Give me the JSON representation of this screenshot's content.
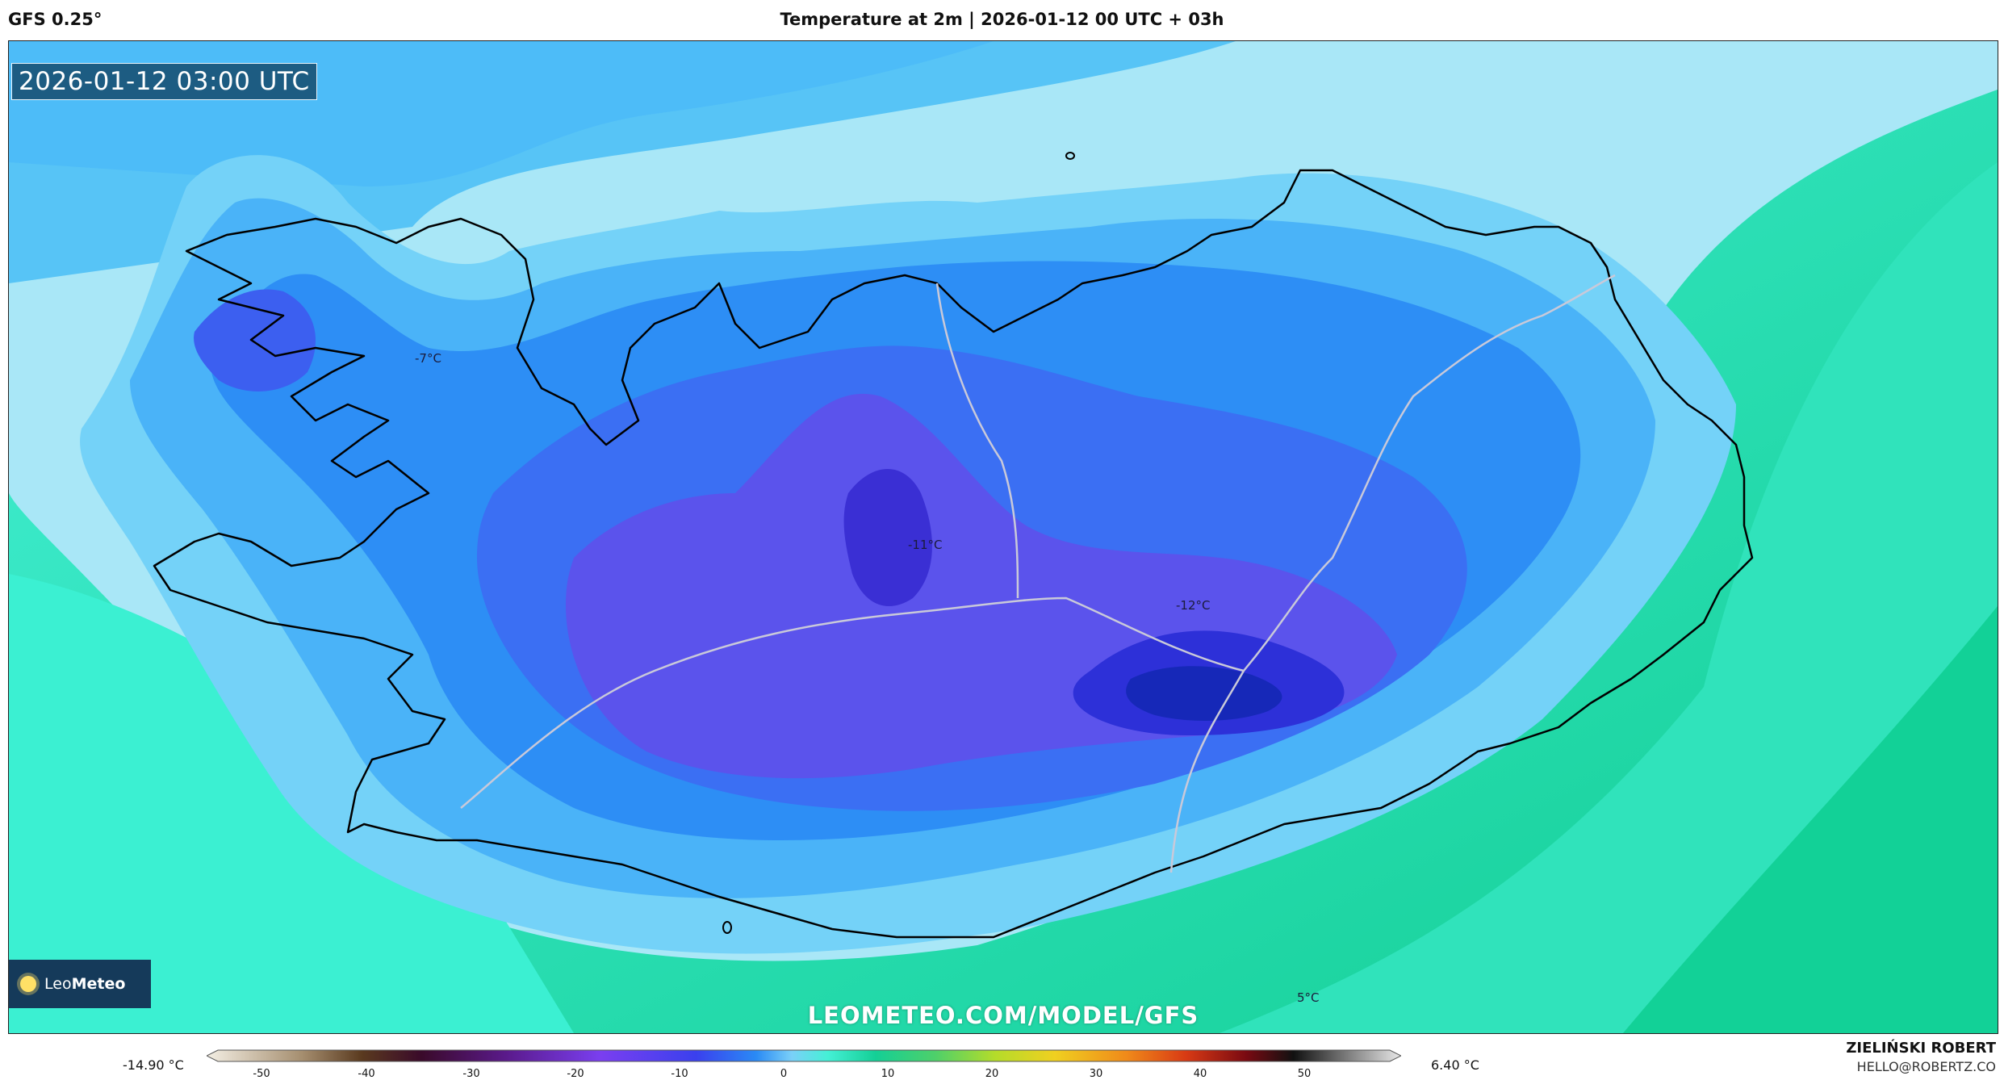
{
  "header": {
    "model_label": "GFS 0.25°",
    "title": "Temperature at 2m | 2026-01-12 00 UTC + 03h"
  },
  "map": {
    "valid_time": "2026-01-12 03:00 UTC",
    "watermark": "LEOMETEO.COM/MODEL/GFS",
    "logo": {
      "text_light": "Leo",
      "text_bold": "Meteo",
      "icon": "sun-icon"
    },
    "labels": [
      {
        "id": "west",
        "text": "-7°C"
      },
      {
        "id": "center",
        "text": "-11°C"
      },
      {
        "id": "east",
        "text": "-12°C"
      },
      {
        "id": "south",
        "text": "5°C"
      }
    ],
    "colors": {
      "sea_far": "#1fd3a0",
      "sea_near": "#45f0d6",
      "coastal": "#a9e7f7",
      "land_light": "#57c4f6",
      "land_mid": "#2a8df5",
      "land_cold": "#3e5af0",
      "land_colder": "#5a4fe8",
      "land_coldest": "#1a2fc4"
    }
  },
  "colorbar": {
    "min_label": "-14.90 °C",
    "max_label": "6.40 °C",
    "ticks": [
      "-50",
      "-40",
      "-30",
      "-20",
      "-10",
      "0",
      "10",
      "20",
      "30",
      "40",
      "50"
    ]
  },
  "credits": {
    "name": "ZIELIŃSKI ROBERT",
    "email": "HELLO@ROBERTZ.CO"
  }
}
